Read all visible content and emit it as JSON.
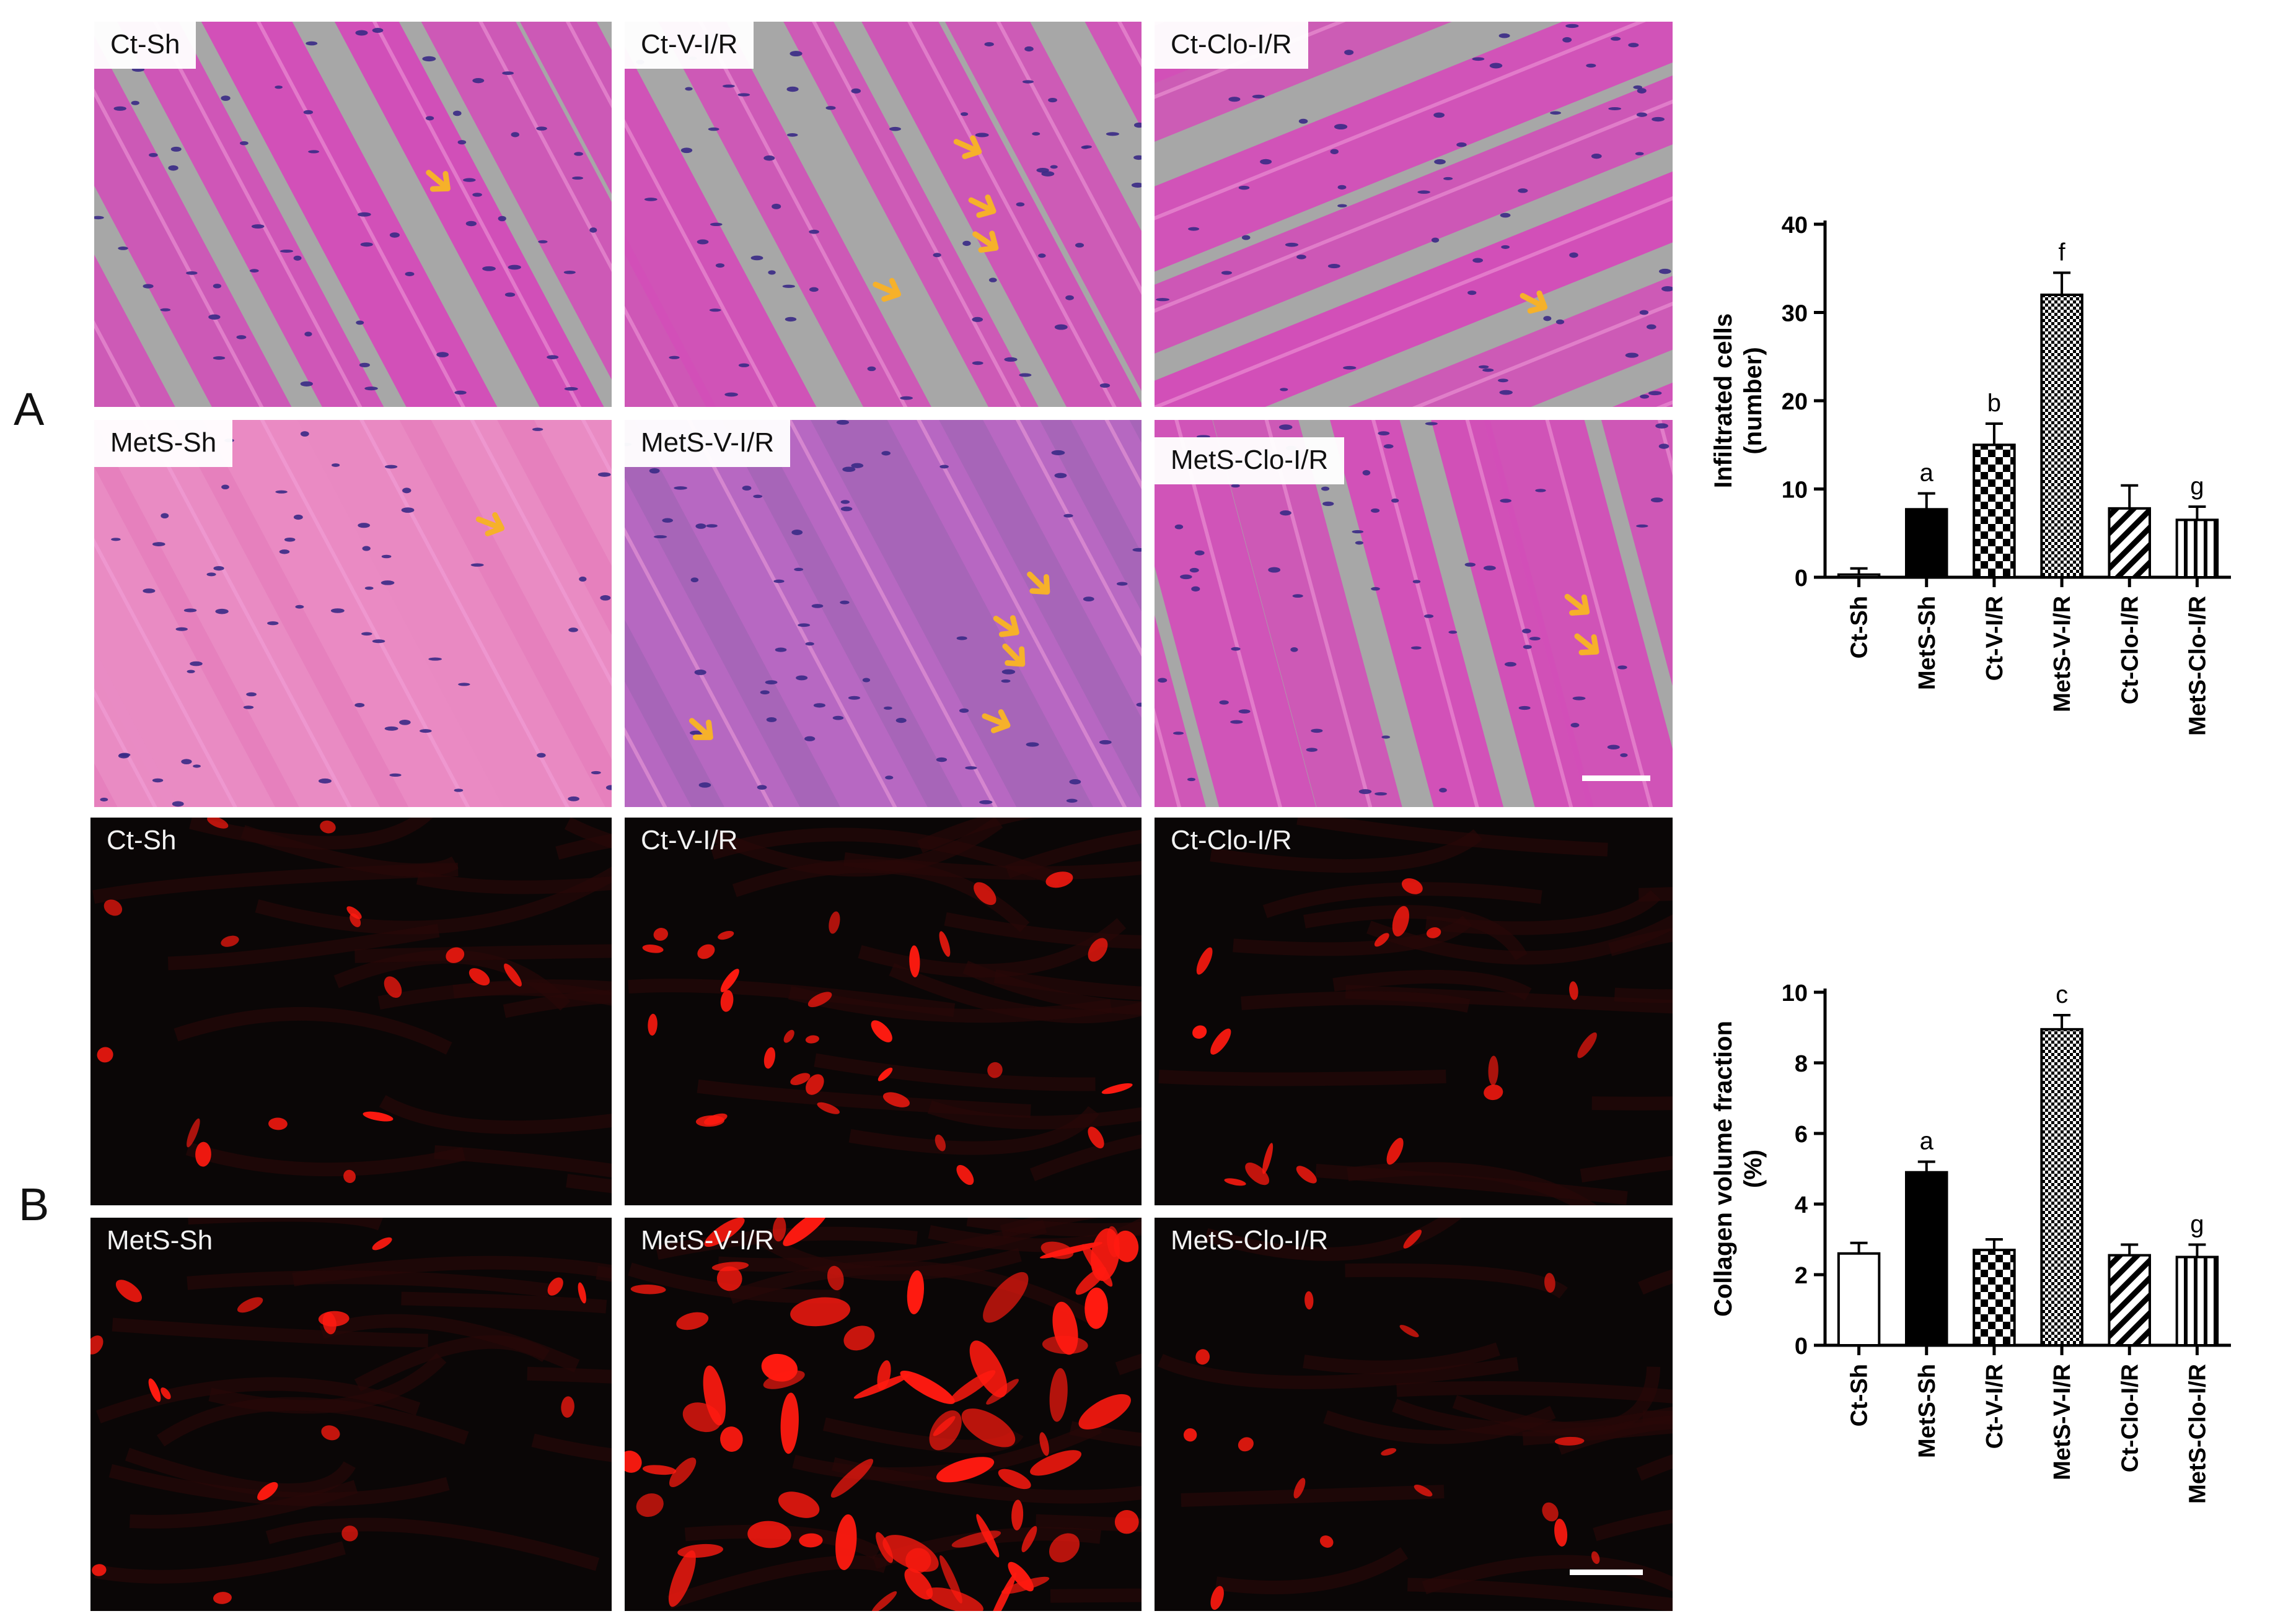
{
  "panels": {
    "A": {
      "letter": "A",
      "tiles": [
        {
          "label": "Ct-Sh"
        },
        {
          "label": "Ct-V-I/R"
        },
        {
          "label": "Ct-Clo-I/R"
        },
        {
          "label": "MetS-Sh"
        },
        {
          "label": "MetS-V-I/R"
        },
        {
          "label": "MetS-Clo-I/R"
        }
      ]
    },
    "B": {
      "letter": "B",
      "tiles": [
        {
          "label": "Ct-Sh"
        },
        {
          "label": "Ct-V-I/R"
        },
        {
          "label": "Ct-Clo-I/R"
        },
        {
          "label": "MetS-Sh"
        },
        {
          "label": "MetS-V-I/R"
        },
        {
          "label": "MetS-Clo-I/R"
        }
      ]
    }
  },
  "colors": {
    "he_background": "#a7a7a7",
    "he_tissue": "#d24fb8",
    "nuclei": "#3a2a86",
    "arrow": "#f6b12a",
    "fluor_background": "#0a0606",
    "fluor_signal": "#ff1a10"
  },
  "chart_data": [
    {
      "type": "bar",
      "title": "",
      "xlabel": "",
      "ylabel": "Infiltrated cells\n(number)",
      "categories": [
        "Ct-Sh",
        "MetS-Sh",
        "Ct-V-I/R",
        "MetS-V-I/R",
        "Ct-Clo-I/R",
        "MetS-Clo-I/R"
      ],
      "values": [
        0.3,
        7.7,
        15.0,
        32.0,
        7.8,
        6.5
      ],
      "errors": [
        0.7,
        1.8,
        2.4,
        2.5,
        2.6,
        1.5
      ],
      "letters": [
        "",
        "a",
        "b",
        "f",
        "",
        "g"
      ],
      "patterns": [
        "open",
        "solid",
        "checker",
        "fine-checker",
        "diagonal",
        "vertical"
      ],
      "ylim": [
        0,
        40
      ],
      "yticks": [
        0,
        10,
        20,
        30,
        40
      ],
      "grid": false
    },
    {
      "type": "bar",
      "title": "",
      "xlabel": "",
      "ylabel": "Collagen volume fraction\n(%)",
      "categories": [
        "Ct-Sh",
        "MetS-Sh",
        "Ct-V-I/R",
        "MetS-V-I/R",
        "Ct-Clo-I/R",
        "MetS-Clo-I/R"
      ],
      "values": [
        2.6,
        4.9,
        2.7,
        8.95,
        2.55,
        2.5
      ],
      "errors": [
        0.3,
        0.3,
        0.3,
        0.4,
        0.3,
        0.35
      ],
      "letters": [
        "",
        "a",
        "",
        "c",
        "",
        "g"
      ],
      "patterns": [
        "open",
        "solid",
        "checker",
        "fine-checker",
        "diagonal",
        "vertical"
      ],
      "ylim": [
        0,
        10
      ],
      "yticks": [
        0,
        2,
        4,
        6,
        8,
        10
      ],
      "grid": false
    }
  ]
}
